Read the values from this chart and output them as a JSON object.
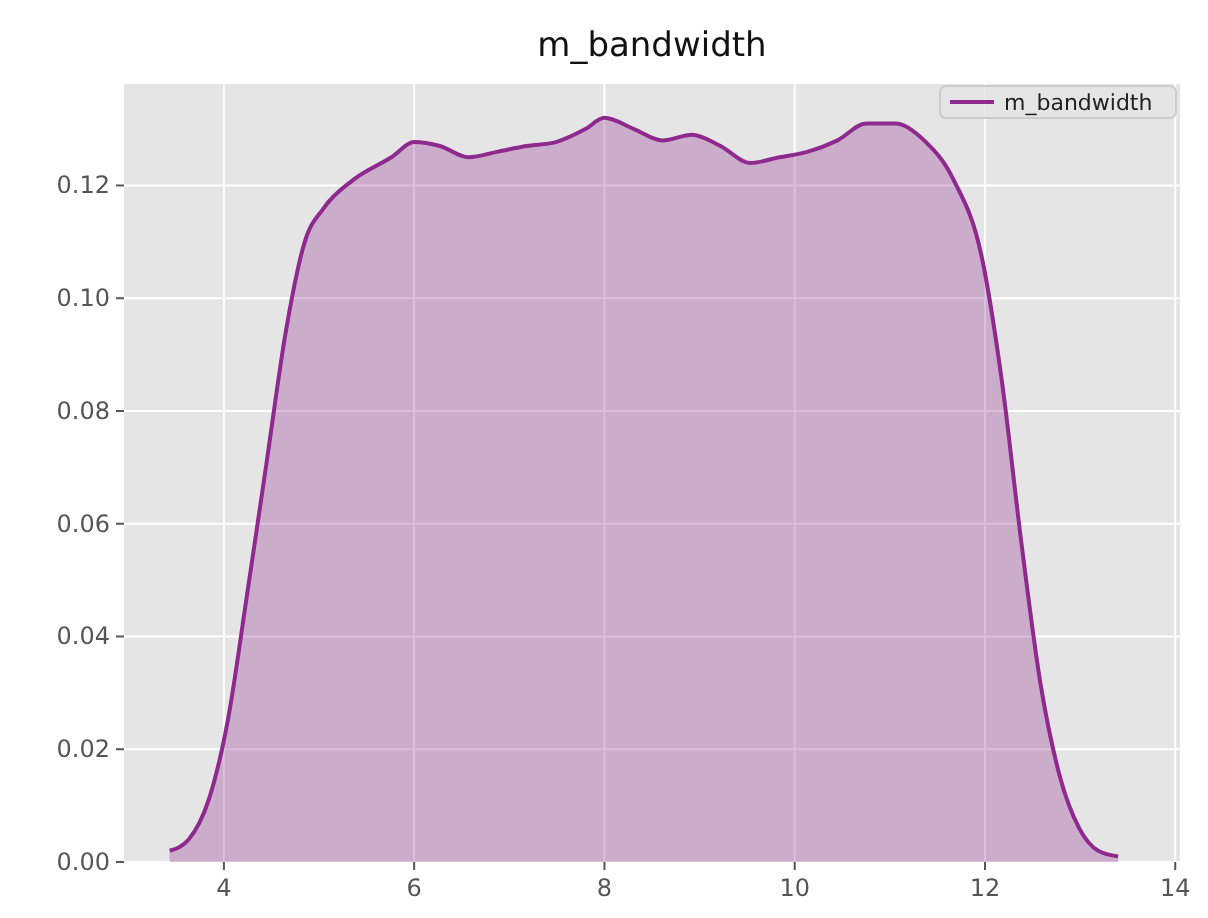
{
  "chart_data": {
    "type": "area",
    "title": "m_bandwidth",
    "xlim": [
      2.95,
      14.05
    ],
    "xticks": [
      4,
      6,
      8,
      10,
      12,
      14
    ],
    "ylim": [
      0,
      0.138
    ],
    "yticks": [
      {
        "value": 0,
        "label": "0.00"
      },
      {
        "value": 0.02,
        "label": "0.02"
      },
      {
        "value": 0.04,
        "label": "0.04"
      },
      {
        "value": 0.06,
        "label": "0.06"
      },
      {
        "value": 0.08,
        "label": "0.08"
      },
      {
        "value": 0.1,
        "label": "0.10"
      },
      {
        "value": 0.12,
        "label": "0.12"
      }
    ],
    "grid": true,
    "legend": "top right",
    "series": [
      {
        "name": "m_bandwidth",
        "color": "#8e2a8e",
        "x": [
          3.43,
          3.63,
          3.84,
          4.04,
          4.24,
          4.45,
          4.65,
          4.85,
          5.05,
          5.36,
          5.76,
          6.0,
          6.27,
          6.57,
          6.88,
          7.18,
          7.49,
          7.8,
          8.0,
          8.31,
          8.61,
          8.92,
          9.22,
          9.53,
          9.84,
          10.14,
          10.45,
          10.75,
          11.06,
          11.36,
          11.67,
          11.97,
          12.18,
          12.38,
          12.58,
          12.79,
          12.99,
          13.19,
          13.4
        ],
        "values": [
          0.002,
          0.004,
          0.011,
          0.025,
          0.047,
          0.071,
          0.094,
          0.11,
          0.116,
          0.121,
          0.125,
          0.1277,
          0.127,
          0.125,
          0.126,
          0.127,
          0.1277,
          0.13,
          0.132,
          0.13,
          0.128,
          0.129,
          0.127,
          0.124,
          0.125,
          0.126,
          0.128,
          0.131,
          0.131,
          0.128,
          0.121,
          0.107,
          0.085,
          0.057,
          0.032,
          0.015,
          0.006,
          0.002,
          0.001
        ]
      }
    ]
  }
}
